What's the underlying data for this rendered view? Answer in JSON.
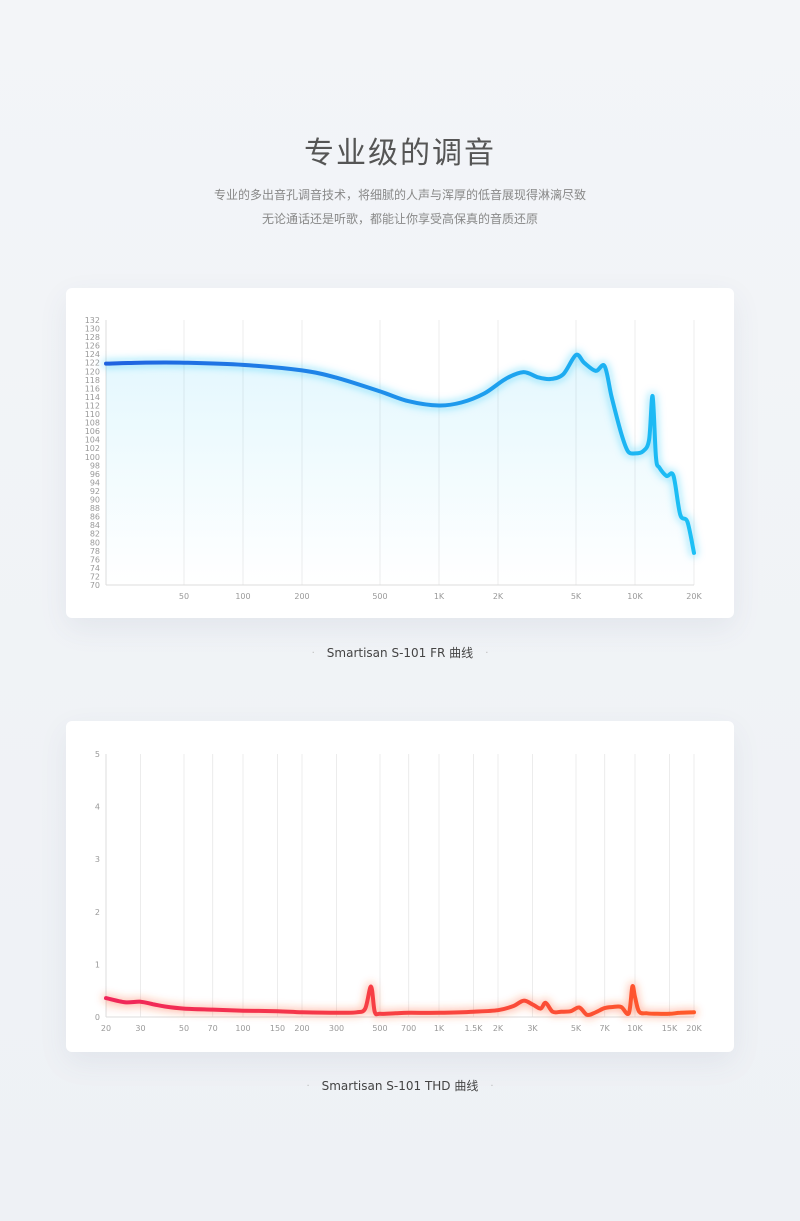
{
  "header": {
    "title": "专业级的调音",
    "line1": "专业的多出音孔调音技术，将细腻的人声与浑厚的低音展现得淋漓尽致",
    "line2": "无论通话还是听歌，都能让你享受高保真的音质还原"
  },
  "captions": {
    "fr": "Smartisan S-101 FR 曲线",
    "thd": "Smartisan S-101 THD 曲线",
    "dot": "·"
  },
  "chart_data": [
    {
      "type": "line",
      "x_scale": "log",
      "xlim": [
        20,
        20000
      ],
      "ylim": [
        70,
        132
      ],
      "grid": true,
      "x_ticks": [
        {
          "v": 50,
          "label": "50"
        },
        {
          "v": 100,
          "label": "100"
        },
        {
          "v": 200,
          "label": "200"
        },
        {
          "v": 500,
          "label": "500"
        },
        {
          "v": 1000,
          "label": "1K"
        },
        {
          "v": 2000,
          "label": "2K"
        },
        {
          "v": 5000,
          "label": "5K"
        },
        {
          "v": 10000,
          "label": "10K"
        },
        {
          "v": 20000,
          "label": "20K"
        }
      ],
      "y_ticks": [
        70,
        72,
        74,
        76,
        78,
        80,
        82,
        84,
        86,
        88,
        90,
        92,
        94,
        96,
        98,
        100,
        102,
        104,
        106,
        108,
        110,
        112,
        114,
        116,
        118,
        120,
        122,
        124,
        126,
        128,
        130,
        132
      ],
      "colors": [
        "#1f62e0",
        "#1cc0f5"
      ],
      "series": [
        {
          "x": [
            20,
            30,
            50,
            100,
            200,
            300,
            500,
            700,
            1000,
            1300,
            1700,
            2200,
            2700,
            3200,
            3700,
            4300,
            5000,
            5500,
            6300,
            7000,
            7600,
            8500,
            9200,
            10000,
            11000,
            11800,
            12300,
            12800,
            13300,
            14500,
            15700,
            17000,
            18500,
            20000
          ],
          "y": [
            121.8,
            122,
            122,
            121.5,
            120.2,
            118.5,
            115.3,
            113,
            112,
            112.7,
            114.8,
            118.3,
            119.8,
            118.6,
            118.2,
            119.3,
            123.8,
            122,
            120.1,
            121.2,
            114,
            105.5,
            101.3,
            100.8,
            101.3,
            104,
            114.2,
            99.8,
            97.5,
            95.5,
            95.6,
            86.5,
            84.8,
            77.5
          ]
        }
      ]
    },
    {
      "type": "line",
      "x_scale": "log",
      "xlim": [
        20,
        20000
      ],
      "ylim": [
        0,
        5
      ],
      "grid": true,
      "x_ticks": [
        {
          "v": 20,
          "label": "20"
        },
        {
          "v": 30,
          "label": "30"
        },
        {
          "v": 50,
          "label": "50"
        },
        {
          "v": 70,
          "label": "70"
        },
        {
          "v": 100,
          "label": "100"
        },
        {
          "v": 150,
          "label": "150"
        },
        {
          "v": 200,
          "label": "200"
        },
        {
          "v": 300,
          "label": "300"
        },
        {
          "v": 500,
          "label": "500"
        },
        {
          "v": 700,
          "label": "700"
        },
        {
          "v": 1000,
          "label": "1K"
        },
        {
          "v": 1500,
          "label": "1.5K"
        },
        {
          "v": 2000,
          "label": "2K"
        },
        {
          "v": 3000,
          "label": "3K"
        },
        {
          "v": 5000,
          "label": "5K"
        },
        {
          "v": 7000,
          "label": "7K"
        },
        {
          "v": 10000,
          "label": "10K"
        },
        {
          "v": 15000,
          "label": "15K"
        },
        {
          "v": 20000,
          "label": "20K"
        }
      ],
      "y_ticks": [
        0,
        1,
        2,
        3,
        4,
        5
      ],
      "colors": [
        "#f0265a",
        "#ff5a2a"
      ],
      "series": [
        {
          "x": [
            20,
            25,
            30,
            35,
            40,
            50,
            70,
            100,
            150,
            200,
            300,
            380,
            420,
            450,
            470,
            500,
            600,
            700,
            1000,
            1500,
            2000,
            2400,
            2700,
            3000,
            3300,
            3500,
            3800,
            4200,
            4700,
            5200,
            5700,
            6300,
            7000,
            7700,
            8500,
            9300,
            9700,
            10000,
            10500,
            11500,
            13000,
            15000,
            17000,
            20000
          ],
          "y": [
            0.36,
            0.28,
            0.29,
            0.24,
            0.2,
            0.16,
            0.14,
            0.12,
            0.11,
            0.09,
            0.08,
            0.09,
            0.16,
            0.58,
            0.1,
            0.06,
            0.07,
            0.08,
            0.08,
            0.1,
            0.13,
            0.21,
            0.31,
            0.24,
            0.16,
            0.27,
            0.1,
            0.1,
            0.11,
            0.18,
            0.04,
            0.09,
            0.17,
            0.19,
            0.19,
            0.07,
            0.58,
            0.38,
            0.1,
            0.07,
            0.06,
            0.06,
            0.08,
            0.09
          ]
        }
      ]
    }
  ]
}
